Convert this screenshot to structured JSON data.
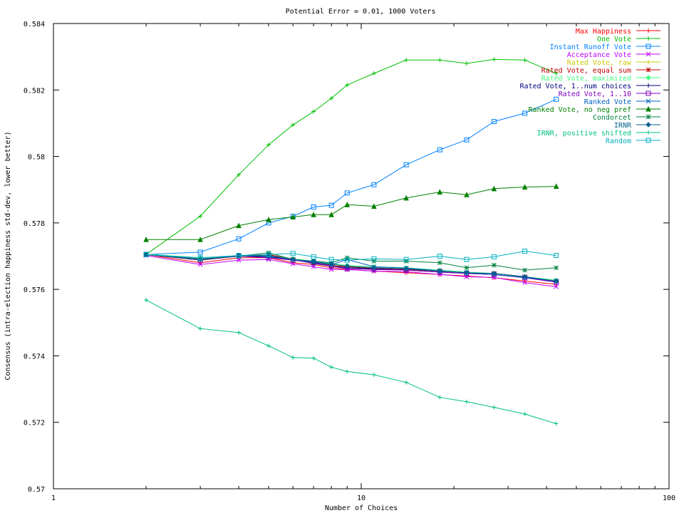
{
  "chart_data": {
    "type": "line",
    "title": "Potential Error = 0.01, 1000 Voters",
    "xlabel": "Number of Choices",
    "ylabel": "Consensus (intra-election happiness std-dev, lower better)",
    "xscale": "log",
    "xlim": [
      1,
      100
    ],
    "ylim": [
      0.57,
      0.584
    ],
    "xticks": [
      1,
      10,
      100
    ],
    "xtick_labels": [
      "1",
      "10",
      "100"
    ],
    "yticks": [
      0.57,
      0.572,
      0.574,
      0.576,
      0.578,
      0.58,
      0.582,
      0.584
    ],
    "ytick_labels": [
      "0.57",
      "0.572",
      "0.574",
      "0.576",
      "0.578",
      "0.58",
      "0.582",
      "0.584"
    ],
    "grid": false,
    "legend_position": "top-right",
    "x": [
      2,
      3,
      4,
      5,
      6,
      7,
      8,
      9,
      11,
      14,
      18,
      22,
      27,
      34,
      43
    ],
    "series": [
      {
        "name": "Max Happiness",
        "color": "#ff0000",
        "marker": "plus",
        "values": [
          0.57705,
          0.5768,
          0.57695,
          0.57695,
          0.5768,
          0.57675,
          0.57665,
          0.5766,
          0.57655,
          0.5765,
          0.57645,
          0.5764,
          0.57635,
          0.57625,
          0.57615
        ]
      },
      {
        "name": "One Vote",
        "color": "#00c000",
        "marker": "plus",
        "values": [
          0.57705,
          0.5782,
          0.57945,
          0.58035,
          0.58095,
          0.58135,
          0.58175,
          0.58215,
          0.5825,
          0.5829,
          0.5829,
          0.5828,
          0.58292,
          0.5829,
          0.5825
        ]
      },
      {
        "name": "Instant Runoff Vote",
        "color": "#0080ff",
        "marker": "square",
        "values": [
          0.57705,
          0.57712,
          0.57752,
          0.578,
          0.5782,
          0.57848,
          0.57853,
          0.5789,
          0.57915,
          0.57975,
          0.5802,
          0.5805,
          0.58105,
          0.5813,
          0.58172
        ]
      },
      {
        "name": "Acceptance Vote",
        "color": "#c000ff",
        "marker": "x",
        "values": [
          0.57702,
          0.57675,
          0.57688,
          0.5769,
          0.57677,
          0.57668,
          0.5766,
          0.5766,
          0.57655,
          0.57653,
          0.57645,
          0.57638,
          0.57636,
          0.5762,
          0.57608
        ]
      },
      {
        "name": "Rated Vote, raw",
        "color": "#c8c800",
        "marker": "plus",
        "values": [
          0.57706,
          0.5769,
          0.577,
          0.57705,
          0.5769,
          0.5768,
          0.57672,
          0.57668,
          0.57663,
          0.5766,
          0.57655,
          0.5765,
          0.57648,
          0.57638,
          0.57625
        ]
      },
      {
        "name": "Rated Vote, equal sum",
        "color": "#c00000",
        "marker": "star",
        "values": [
          0.57706,
          0.5769,
          0.577,
          0.57705,
          0.5769,
          0.5768,
          0.57672,
          0.57668,
          0.57663,
          0.5766,
          0.57655,
          0.5765,
          0.57648,
          0.57638,
          0.57625
        ]
      },
      {
        "name": "Rated Vote, maximized",
        "color": "#40ff80",
        "marker": "diamond",
        "values": [
          0.57706,
          0.57695,
          0.577,
          0.577,
          0.57692,
          0.57685,
          0.57678,
          0.57672,
          0.57668,
          0.57665,
          0.57658,
          0.57652,
          0.57648,
          0.57638,
          0.57628
        ]
      },
      {
        "name": "Rated Vote, 1..num choices",
        "color": "#000080",
        "marker": "plus",
        "values": [
          0.57705,
          0.57688,
          0.577,
          0.57698,
          0.5769,
          0.57678,
          0.5767,
          0.57665,
          0.57662,
          0.57658,
          0.57652,
          0.57648,
          0.57645,
          0.57635,
          0.57622
        ]
      },
      {
        "name": "Rated Vote, 1..10",
        "color": "#8000c0",
        "marker": "square",
        "values": [
          0.57705,
          0.57688,
          0.577,
          0.57695,
          0.57688,
          0.5768,
          0.5767,
          0.57662,
          0.5766,
          0.57658,
          0.57652,
          0.57648,
          0.57645,
          0.57635,
          0.57622
        ]
      },
      {
        "name": "Ranked Vote",
        "color": "#0060c0",
        "marker": "x",
        "values": [
          0.57705,
          0.5769,
          0.57702,
          0.577,
          0.5769,
          0.57682,
          0.57674,
          0.5769,
          0.57668,
          0.57664,
          0.57656,
          0.5765,
          0.57645,
          0.57636,
          0.57625
        ]
      },
      {
        "name": "Ranked Vote, no neg pref",
        "color": "#008000",
        "marker": "triangle",
        "values": [
          0.5775,
          0.5775,
          0.57792,
          0.5781,
          0.57818,
          0.57825,
          0.57825,
          0.57855,
          0.5785,
          0.57875,
          0.57893,
          0.57885,
          0.57903,
          0.57908,
          0.5791
        ]
      },
      {
        "name": "Condorcet",
        "color": "#008040",
        "marker": "star",
        "values": [
          0.57705,
          0.5769,
          0.577,
          0.5771,
          0.5769,
          0.57685,
          0.5768,
          0.57695,
          0.57685,
          0.57685,
          0.5768,
          0.57665,
          0.57673,
          0.57658,
          0.57665
        ]
      },
      {
        "name": "IRNR",
        "color": "#006090",
        "marker": "diamond",
        "values": [
          0.57705,
          0.57692,
          0.577,
          0.57702,
          0.5769,
          0.57684,
          0.57676,
          0.5767,
          0.57665,
          0.57662,
          0.57655,
          0.5765,
          0.57648,
          0.57638,
          0.57625
        ]
      },
      {
        "name": "IRNR, positive shifted",
        "color": "#00c080",
        "marker": "plus",
        "values": [
          0.57568,
          0.57482,
          0.5747,
          0.5743,
          0.57395,
          0.57393,
          0.57366,
          0.57353,
          0.57343,
          0.5732,
          0.57275,
          0.57262,
          0.57245,
          0.57225,
          0.57196
        ]
      },
      {
        "name": "Random",
        "color": "#00b0c0",
        "marker": "square",
        "values": [
          0.57705,
          0.57695,
          0.57702,
          0.57705,
          0.57708,
          0.57698,
          0.5769,
          0.57688,
          0.57692,
          0.5769,
          0.577,
          0.5769,
          0.57698,
          0.57715,
          0.57702
        ]
      }
    ]
  }
}
